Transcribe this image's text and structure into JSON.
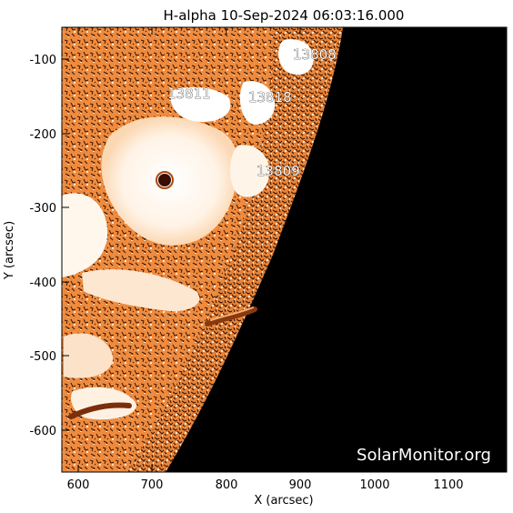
{
  "title": "H-alpha 10-Sep-2024 06:03:16.000",
  "x_axis": {
    "label": "X (arcsec)",
    "ticks": [
      "600",
      "700",
      "800",
      "900",
      "1000",
      "1100"
    ]
  },
  "y_axis": {
    "label": "Y (arcsec)",
    "ticks": [
      "-100",
      "-200",
      "-300",
      "-400",
      "-500",
      "-600"
    ]
  },
  "regions": [
    {
      "label": "13808"
    },
    {
      "label": "13811"
    },
    {
      "label": "13818"
    },
    {
      "label": "13809"
    }
  ],
  "watermark": "SolarMonitor.org",
  "colors": {
    "disk_orange": "#ee8a3c",
    "plage_white": "#ffffff",
    "filament_dark": "#6a2a08",
    "off_limb": "#000000"
  }
}
